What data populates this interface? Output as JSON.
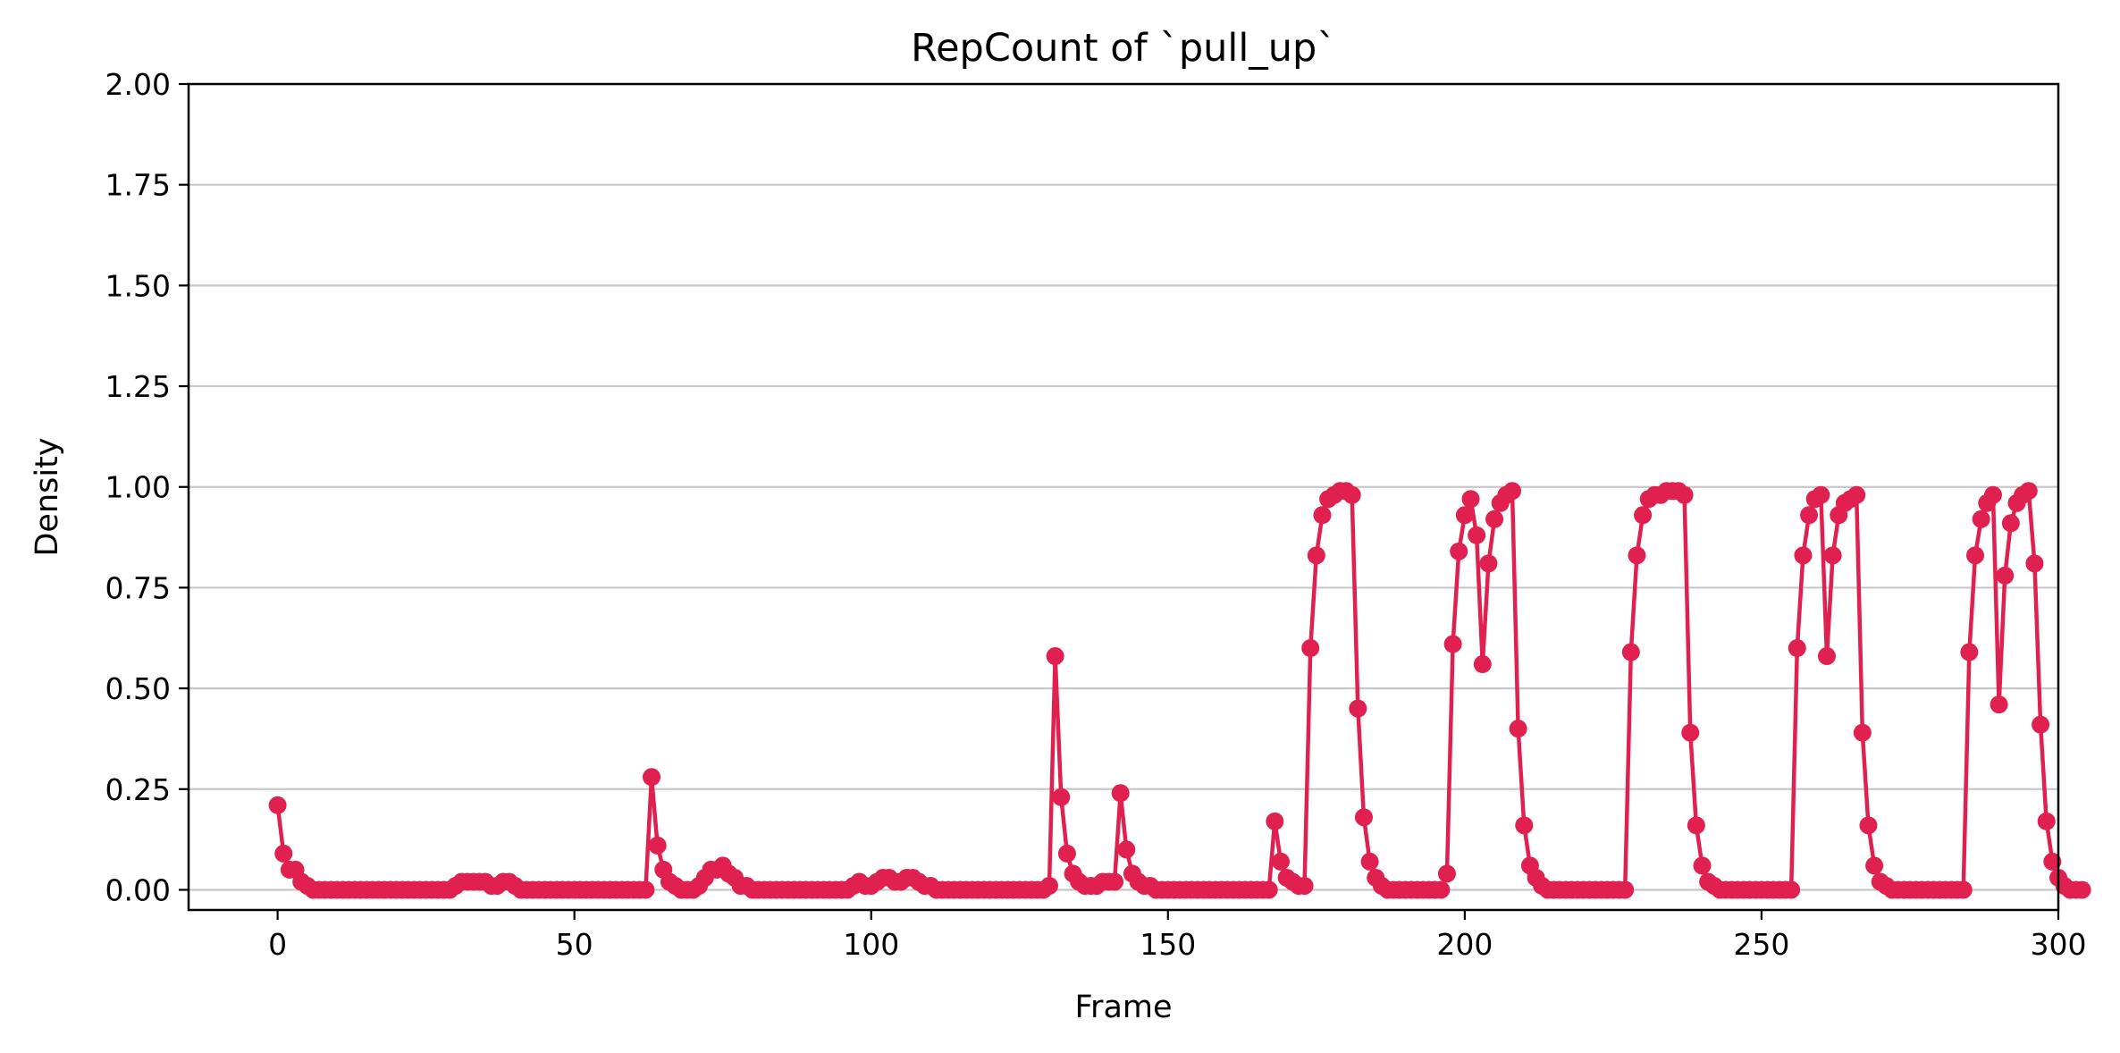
{
  "chart_data": {
    "type": "line",
    "title": "RepCount of `pull_up`",
    "xlabel": "Frame",
    "ylabel": "Density",
    "xlim": [
      -15,
      300
    ],
    "ylim": [
      -0.05,
      2.0
    ],
    "xticks": [
      0,
      50,
      100,
      150,
      200,
      250,
      300
    ],
    "xtick_labels": [
      "0",
      "50",
      "100",
      "150",
      "200",
      "250",
      "300"
    ],
    "yticks": [
      0,
      0.25,
      0.5,
      0.75,
      1.0,
      1.25,
      1.5,
      1.75,
      2.0
    ],
    "ytick_labels": [
      "0.00",
      "0.25",
      "0.50",
      "0.75",
      "1.00",
      "1.25",
      "1.50",
      "1.75",
      "2.00"
    ],
    "grid": "horizontal",
    "line_color": "#E0204F",
    "marker": "circle",
    "series": [
      {
        "values": [
          0.21,
          0.09,
          0.05,
          0.05,
          0.02,
          0.01,
          0.0,
          0.0,
          0.0,
          0.0,
          0.0,
          0.0,
          0.0,
          0.0,
          0.0,
          0.0,
          0.0,
          0.0,
          0.0,
          0.0,
          0.0,
          0.0,
          0.0,
          0.0,
          0.0,
          0.0,
          0.0,
          0.0,
          0.0,
          0.0,
          0.01,
          0.02,
          0.02,
          0.02,
          0.02,
          0.02,
          0.01,
          0.01,
          0.02,
          0.02,
          0.01,
          0.0,
          0.0,
          0.0,
          0.0,
          0.0,
          0.0,
          0.0,
          0.0,
          0.0,
          0.0,
          0.0,
          0.0,
          0.0,
          0.0,
          0.0,
          0.0,
          0.0,
          0.0,
          0.0,
          0.0,
          0.0,
          0.0,
          0.28,
          0.11,
          0.05,
          0.02,
          0.01,
          0.0,
          0.0,
          0.0,
          0.01,
          0.03,
          0.05,
          0.05,
          0.06,
          0.04,
          0.03,
          0.01,
          0.01,
          0.0,
          0.0,
          0.0,
          0.0,
          0.0,
          0.0,
          0.0,
          0.0,
          0.0,
          0.0,
          0.0,
          0.0,
          0.0,
          0.0,
          0.0,
          0.0,
          0.0,
          0.01,
          0.02,
          0.01,
          0.01,
          0.02,
          0.03,
          0.03,
          0.02,
          0.02,
          0.03,
          0.03,
          0.02,
          0.01,
          0.01,
          0.0,
          0.0,
          0.0,
          0.0,
          0.0,
          0.0,
          0.0,
          0.0,
          0.0,
          0.0,
          0.0,
          0.0,
          0.0,
          0.0,
          0.0,
          0.0,
          0.0,
          0.0,
          0.0,
          0.01,
          0.58,
          0.23,
          0.09,
          0.04,
          0.02,
          0.01,
          0.01,
          0.01,
          0.02,
          0.02,
          0.02,
          0.24,
          0.1,
          0.04,
          0.02,
          0.01,
          0.01,
          0.0,
          0.0,
          0.0,
          0.0,
          0.0,
          0.0,
          0.0,
          0.0,
          0.0,
          0.0,
          0.0,
          0.0,
          0.0,
          0.0,
          0.0,
          0.0,
          0.0,
          0.0,
          0.0,
          0.0,
          0.17,
          0.07,
          0.03,
          0.02,
          0.01,
          0.01,
          0.6,
          0.83,
          0.93,
          0.97,
          0.98,
          0.99,
          0.99,
          0.98,
          0.45,
          0.18,
          0.07,
          0.03,
          0.01,
          0.0,
          0.0,
          0.0,
          0.0,
          0.0,
          0.0,
          0.0,
          0.0,
          0.0,
          0.0,
          0.04,
          0.61,
          0.84,
          0.93,
          0.97,
          0.88,
          0.56,
          0.81,
          0.92,
          0.96,
          0.98,
          0.99,
          0.4,
          0.16,
          0.06,
          0.03,
          0.01,
          0.0,
          0.0,
          0.0,
          0.0,
          0.0,
          0.0,
          0.0,
          0.0,
          0.0,
          0.0,
          0.0,
          0.0,
          0.0,
          0.0,
          0.59,
          0.83,
          0.93,
          0.97,
          0.98,
          0.98,
          0.99,
          0.99,
          0.99,
          0.98,
          0.39,
          0.16,
          0.06,
          0.02,
          0.01,
          0.0,
          0.0,
          0.0,
          0.0,
          0.0,
          0.0,
          0.0,
          0.0,
          0.0,
          0.0,
          0.0,
          0.0,
          0.0,
          0.6,
          0.83,
          0.93,
          0.97,
          0.98,
          0.58,
          0.83,
          0.93,
          0.96,
          0.97,
          0.98,
          0.39,
          0.16,
          0.06,
          0.02,
          0.01,
          0.0,
          0.0,
          0.0,
          0.0,
          0.0,
          0.0,
          0.0,
          0.0,
          0.0,
          0.0,
          0.0,
          0.0,
          0.0,
          0.59,
          0.83,
          0.92,
          0.96,
          0.98,
          0.46,
          0.78,
          0.91,
          0.96,
          0.98,
          0.99,
          0.81,
          0.41,
          0.17,
          0.07,
          0.03,
          0.01,
          0.0,
          0.0,
          0.0
        ]
      }
    ]
  }
}
